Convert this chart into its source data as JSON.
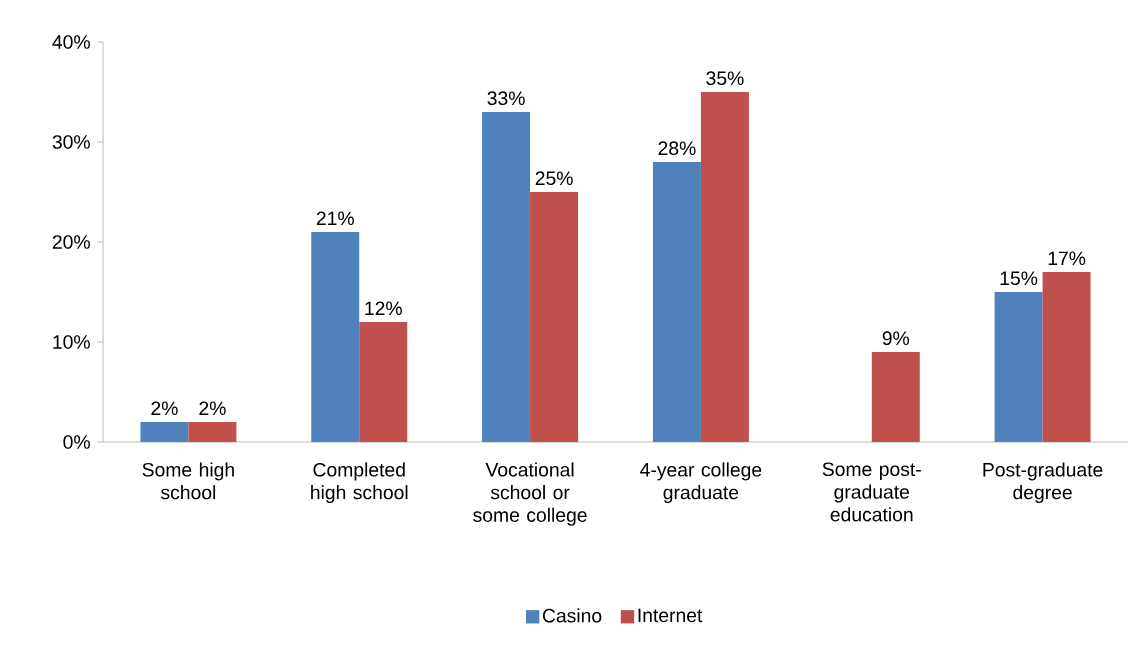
{
  "chart_data": {
    "type": "bar",
    "categories": [
      "Some high school",
      "Completed high school",
      "Vocational school or some college",
      "4-year college graduate",
      "Some post-graduate education",
      "Post-graduate degree"
    ],
    "series": [
      {
        "name": "Casino",
        "color": "#4f81bd",
        "values": [
          2,
          21,
          33,
          28,
          null,
          15
        ],
        "value_labels": [
          "2%",
          "21%",
          "33%",
          "28%",
          null,
          "15%"
        ]
      },
      {
        "name": "Internet",
        "color": "#c0504d",
        "values": [
          2,
          12,
          25,
          35,
          9,
          17
        ],
        "value_labels": [
          "2%",
          "12%",
          "25%",
          "35%",
          "9%",
          "17%"
        ]
      }
    ],
    "ylim": [
      0,
      40
    ],
    "yticks": [
      {
        "value": 0,
        "label": "0%"
      },
      {
        "value": 10,
        "label": "10%"
      },
      {
        "value": 20,
        "label": "20%"
      },
      {
        "value": 30,
        "label": "30%"
      },
      {
        "value": 40,
        "label": "40%"
      }
    ],
    "grid": false,
    "legend": "bottom"
  }
}
